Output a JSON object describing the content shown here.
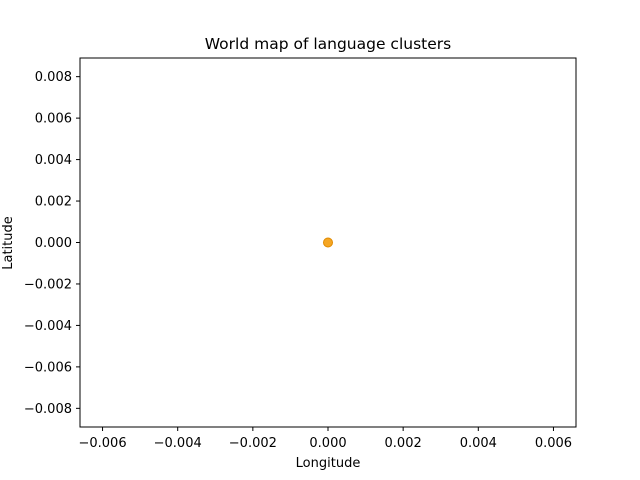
{
  "chart_data": {
    "type": "scatter",
    "title": "World map of language clusters",
    "xlabel": "Longitude",
    "ylabel": "Latitude",
    "xlim": [
      -0.0066,
      0.0066
    ],
    "ylim": [
      -0.0089,
      0.0089
    ],
    "x_ticks": [
      {
        "value": -0.006,
        "label": "−0.006"
      },
      {
        "value": -0.004,
        "label": "−0.004"
      },
      {
        "value": -0.002,
        "label": "−0.002"
      },
      {
        "value": 0.0,
        "label": "0.000"
      },
      {
        "value": 0.002,
        "label": "0.002"
      },
      {
        "value": 0.004,
        "label": "0.004"
      },
      {
        "value": 0.006,
        "label": "0.006"
      }
    ],
    "y_ticks": [
      {
        "value": -0.008,
        "label": "−0.008"
      },
      {
        "value": -0.006,
        "label": "−0.006"
      },
      {
        "value": -0.004,
        "label": "−0.004"
      },
      {
        "value": -0.002,
        "label": "−0.002"
      },
      {
        "value": 0.0,
        "label": "0.000"
      },
      {
        "value": 0.002,
        "label": "0.002"
      },
      {
        "value": 0.004,
        "label": "0.004"
      },
      {
        "value": 0.006,
        "label": "0.006"
      },
      {
        "value": 0.008,
        "label": "0.008"
      }
    ],
    "grid": false,
    "legend": "none",
    "series": [
      {
        "color": "#f5a623",
        "edge_color": "#e08a00",
        "points": [
          {
            "x": 0.0,
            "y": 0.0
          }
        ]
      }
    ]
  }
}
